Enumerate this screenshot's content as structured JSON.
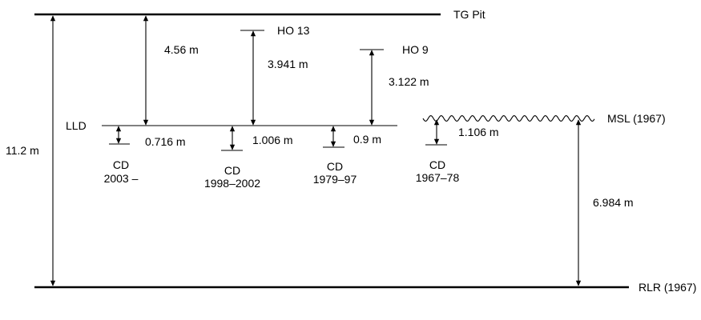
{
  "levels": {
    "tg_pit": "TG Pit",
    "ho13": "HO 13",
    "ho9": "HO 9",
    "lld": "LLD",
    "msl": "MSL (1967)",
    "rlr": "RLR (1967)"
  },
  "measurements": {
    "total": "11.2 m",
    "tg_pit_to_lld": "4.56 m",
    "ho13_to_lld": "3.941 m",
    "ho9_to_lld": "3.122 m",
    "cd_2003": "0.716 m",
    "cd_1998": "1.006 m",
    "cd_1979": "0.9 m",
    "cd_1967": "1.106 m",
    "msl_to_rlr": "6.984 m"
  },
  "chart_datums": [
    {
      "line1": "CD",
      "line2": "2003 –"
    },
    {
      "line1": "CD",
      "line2": "1998–2002"
    },
    {
      "line1": "CD",
      "line2": "1979–97"
    },
    {
      "line1": "CD",
      "line2": "1967–78"
    }
  ]
}
